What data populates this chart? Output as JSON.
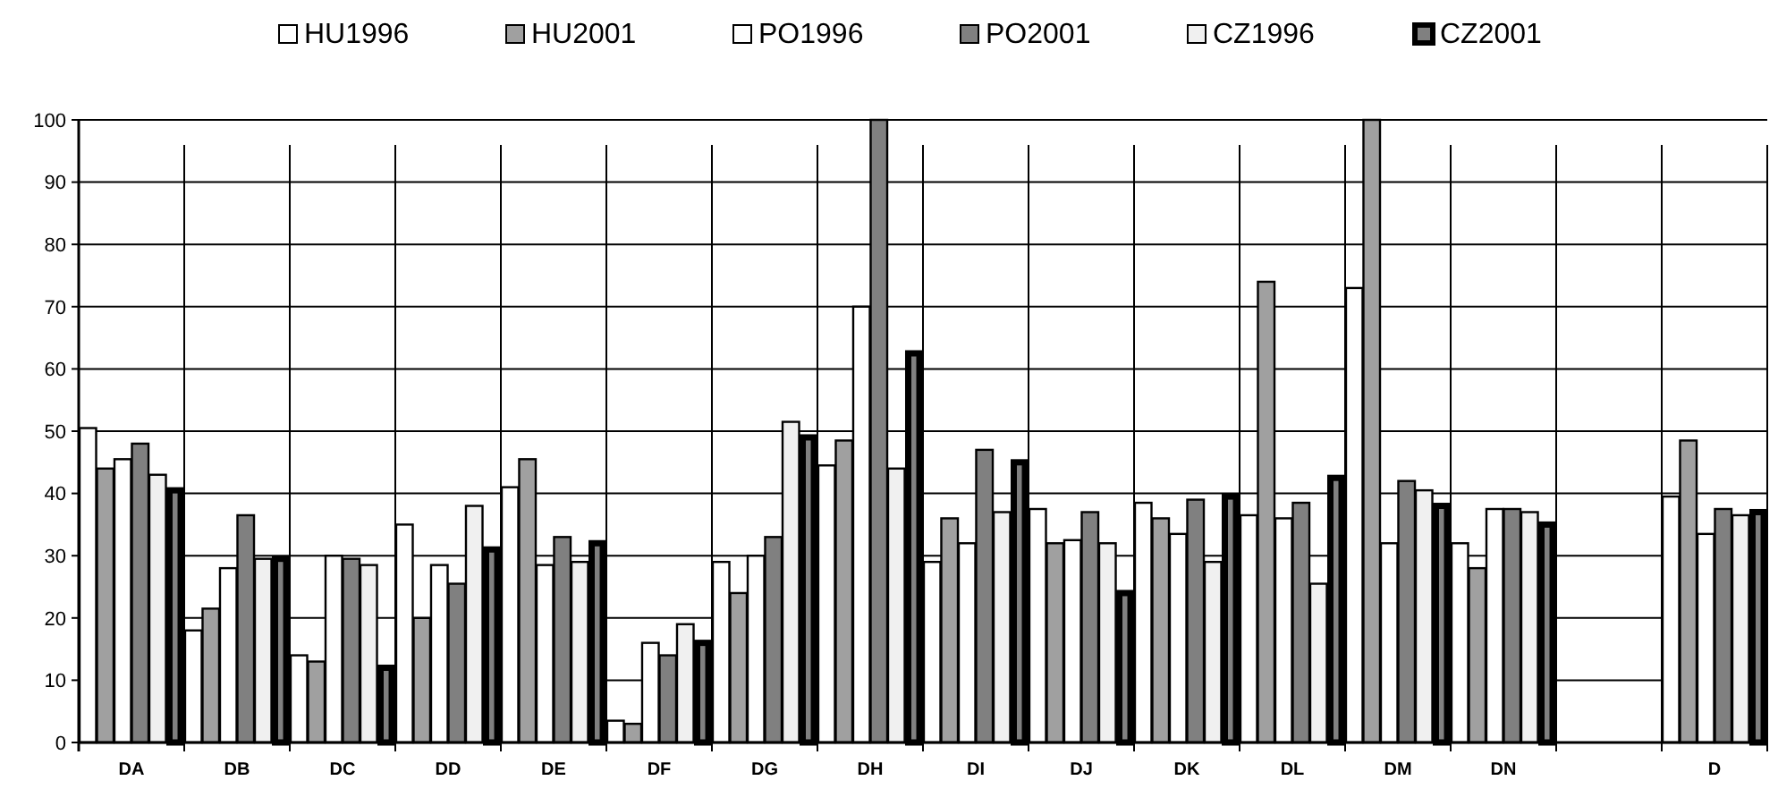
{
  "chart_data": {
    "type": "bar",
    "categories": [
      "DA",
      "DB",
      "DC",
      "DD",
      "DE",
      "DF",
      "DG",
      "DH",
      "DI",
      "DJ",
      "DK",
      "DL",
      "DM",
      "DN",
      null,
      "D"
    ],
    "series": [
      {
        "name": "HU1996",
        "color": "#ffffff",
        "values": [
          50.5,
          18,
          14,
          35,
          41,
          3.5,
          29,
          44.5,
          29,
          37.5,
          38.5,
          36.5,
          73,
          32,
          null,
          39.5
        ]
      },
      {
        "name": "HU2001",
        "color": "#a0a0a0",
        "values": [
          44,
          21.5,
          13,
          20,
          45.5,
          3,
          24,
          48.5,
          36,
          32,
          36,
          74,
          100,
          28,
          null,
          48.5
        ]
      },
      {
        "name": "PO1996",
        "color": "#ffffff",
        "values": [
          45.5,
          28,
          30,
          28.5,
          28.5,
          16,
          30,
          70,
          32,
          32.5,
          33.5,
          36,
          32,
          37.5,
          null,
          33.5
        ]
      },
      {
        "name": "PO2001",
        "color": "#808080",
        "values": [
          48,
          36.5,
          29.5,
          25.5,
          33,
          14,
          33,
          100,
          47,
          37,
          39,
          38.5,
          42,
          37.5,
          null,
          37.5
        ]
      },
      {
        "name": "CZ1996",
        "color": "#f0f0f0",
        "values": [
          43,
          29.5,
          28.5,
          38,
          29,
          19,
          51.5,
          44,
          37,
          32,
          29,
          25.5,
          40.5,
          37,
          null,
          36.5
        ]
      },
      {
        "name": "CZ2001",
        "color": "#808080",
        "values": [
          40.5,
          29.5,
          12,
          31,
          32,
          16,
          49,
          62.5,
          45,
          24,
          39.5,
          42.5,
          38,
          35,
          null,
          37
        ]
      }
    ],
    "ylim": [
      0,
      100
    ],
    "yticks": [
      0,
      10,
      20,
      30,
      40,
      50,
      60,
      70,
      80,
      90,
      100
    ],
    "grid": true,
    "legend": "top"
  }
}
